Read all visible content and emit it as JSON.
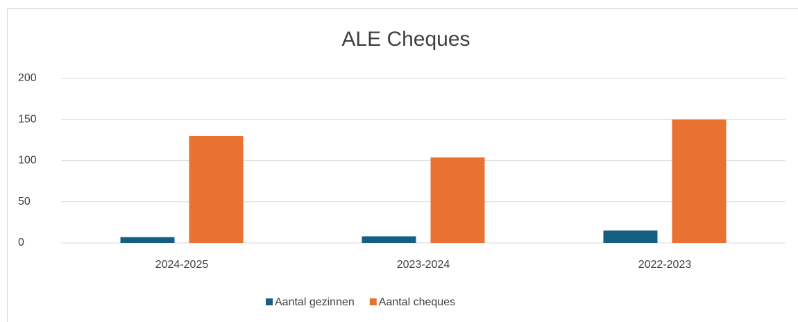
{
  "chart_data": {
    "type": "bar",
    "title": "ALE Cheques",
    "categories": [
      "2024-2025",
      "2023-2024",
      "2022-2023"
    ],
    "series": [
      {
        "name": "Aantal gezinnen",
        "color": "#156082",
        "values": [
          7,
          8,
          15
        ]
      },
      {
        "name": "Aantal cheques",
        "color": "#e97132",
        "values": [
          130,
          104,
          150
        ]
      }
    ],
    "ylim": [
      0,
      200
    ],
    "yticks": [
      0,
      50,
      100,
      150,
      200
    ],
    "grid": true,
    "legend": "bottom"
  }
}
